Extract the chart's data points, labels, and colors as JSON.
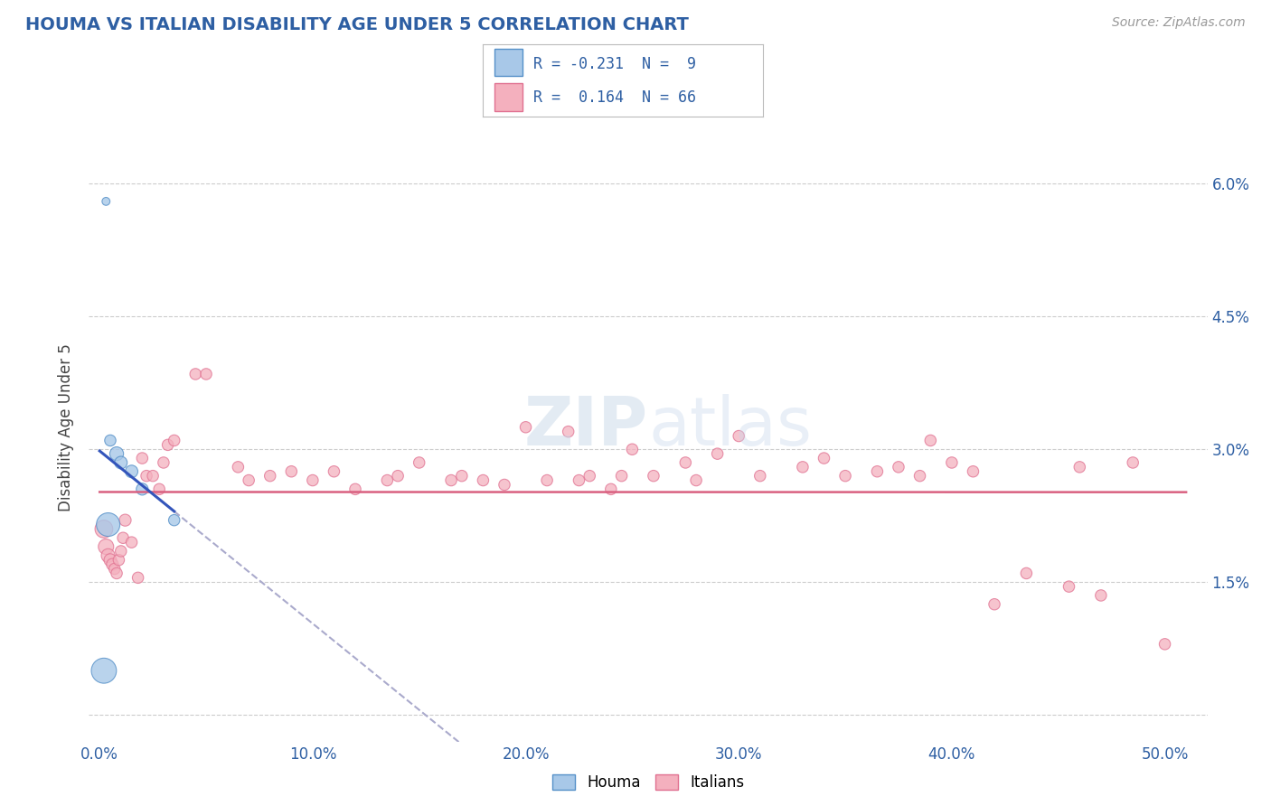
{
  "title": "HOUMA VS ITALIAN DISABILITY AGE UNDER 5 CORRELATION CHART",
  "source": "Source: ZipAtlas.com",
  "ylabel": "Disability Age Under 5",
  "xlim": [
    -0.5,
    52.0
  ],
  "ylim": [
    -0.3,
    6.8
  ],
  "yticks": [
    0.0,
    1.5,
    3.0,
    4.5,
    6.0
  ],
  "ytick_labels": [
    "",
    "1.5%",
    "3.0%",
    "4.5%",
    "6.0%"
  ],
  "xticks": [
    0.0,
    10.0,
    20.0,
    30.0,
    40.0,
    50.0
  ],
  "xtick_labels": [
    "0.0%",
    "10.0%",
    "20.0%",
    "30.0%",
    "40.0%",
    "50.0%"
  ],
  "houma_color": "#a8c8e8",
  "houma_edge": "#5590c8",
  "italian_color": "#f4b0be",
  "italian_edge": "#e07090",
  "legend_R_houma": "-0.231",
  "legend_N_houma": "9",
  "legend_R_italian": "0.164",
  "legend_N_italian": "66",
  "houma_x": [
    0.3,
    0.5,
    0.8,
    1.0,
    1.5,
    2.0,
    3.5,
    0.4,
    0.2
  ],
  "houma_y": [
    5.8,
    3.1,
    2.95,
    2.85,
    2.75,
    2.55,
    2.2,
    2.15,
    0.5
  ],
  "houma_size": [
    40,
    80,
    120,
    100,
    100,
    90,
    80,
    350,
    400
  ],
  "italian_x": [
    0.2,
    0.3,
    0.4,
    0.5,
    0.6,
    0.7,
    0.8,
    0.9,
    1.0,
    1.1,
    1.2,
    1.5,
    1.8,
    2.0,
    2.2,
    2.5,
    2.8,
    3.0,
    3.2,
    3.5,
    4.5,
    5.0,
    6.5,
    7.0,
    8.0,
    9.0,
    10.0,
    11.0,
    12.0,
    13.5,
    14.0,
    15.0,
    16.5,
    17.0,
    18.0,
    19.0,
    20.0,
    21.0,
    22.0,
    23.0,
    24.0,
    24.5,
    25.0,
    26.0,
    27.5,
    29.0,
    30.0,
    31.0,
    33.0,
    34.0,
    35.0,
    36.5,
    37.5,
    39.0,
    40.0,
    41.0,
    43.5,
    45.5,
    47.0,
    50.0,
    28.0,
    22.5,
    38.5,
    42.0,
    46.0,
    48.5
  ],
  "italian_y": [
    2.1,
    1.9,
    1.8,
    1.75,
    1.7,
    1.65,
    1.6,
    1.75,
    1.85,
    2.0,
    2.2,
    1.95,
    1.55,
    2.9,
    2.7,
    2.7,
    2.55,
    2.85,
    3.05,
    3.1,
    3.85,
    3.85,
    2.8,
    2.65,
    2.7,
    2.75,
    2.65,
    2.75,
    2.55,
    2.65,
    2.7,
    2.85,
    2.65,
    2.7,
    2.65,
    2.6,
    3.25,
    2.65,
    3.2,
    2.7,
    2.55,
    2.7,
    3.0,
    2.7,
    2.85,
    2.95,
    3.15,
    2.7,
    2.8,
    2.9,
    2.7,
    2.75,
    2.8,
    3.1,
    2.85,
    2.75,
    1.6,
    1.45,
    1.35,
    0.8,
    2.65,
    2.65,
    2.7,
    1.25,
    2.8,
    2.85
  ],
  "italian_size": [
    200,
    150,
    120,
    100,
    90,
    80,
    80,
    80,
    80,
    80,
    90,
    80,
    80,
    80,
    80,
    80,
    80,
    80,
    80,
    80,
    80,
    80,
    80,
    80,
    80,
    80,
    80,
    80,
    80,
    80,
    80,
    80,
    80,
    80,
    80,
    80,
    80,
    80,
    80,
    80,
    80,
    80,
    80,
    80,
    80,
    80,
    80,
    80,
    80,
    80,
    80,
    80,
    80,
    80,
    80,
    80,
    80,
    80,
    80,
    80,
    80,
    80,
    80,
    80,
    80,
    80
  ],
  "background_color": "#ffffff",
  "grid_color": "#cccccc",
  "title_color": "#2e5fa3",
  "tick_color": "#2e5fa3",
  "label_color": "#444444",
  "trend_blue": "#3355bb",
  "trend_pink": "#d96080",
  "trend_gray_dash": "#aaaacc"
}
